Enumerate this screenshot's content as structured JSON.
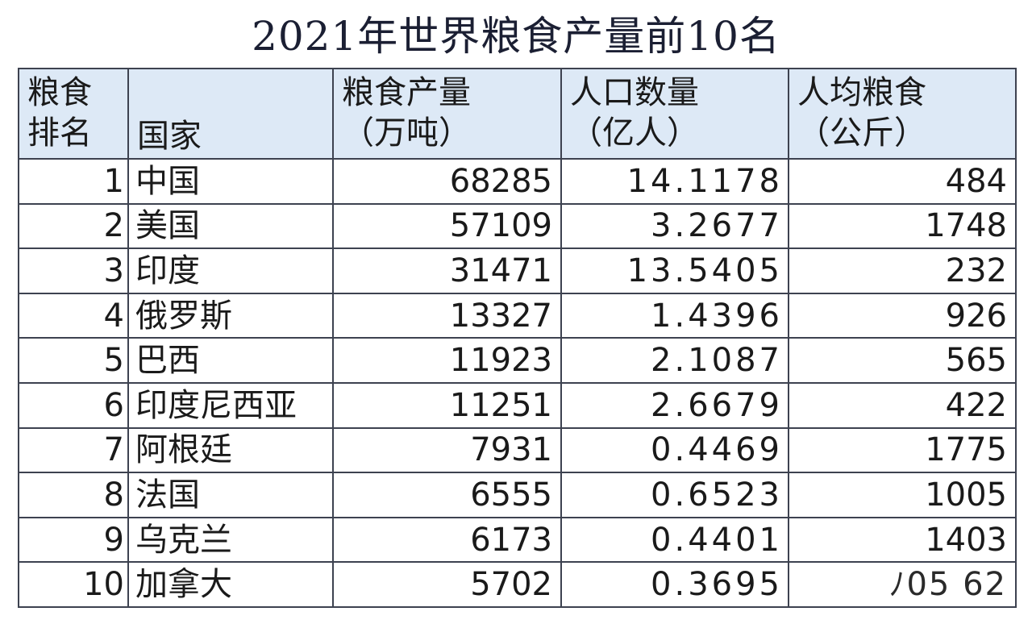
{
  "title": "2021年世界粮食产量前10名",
  "headers": {
    "rank": [
      "粮食",
      "排名"
    ],
    "country": "国家",
    "production": [
      "粮食产量",
      "（万吨）"
    ],
    "population": [
      "人口数量",
      "（亿人）"
    ],
    "per_capita": [
      "人均粮食",
      "（公斤）"
    ]
  },
  "rows": [
    {
      "rank": "1",
      "country": "中国",
      "production": "68285",
      "population": "14.1178",
      "per_capita": "484"
    },
    {
      "rank": "2",
      "country": "美国",
      "production": "57109",
      "population": "3.2677",
      "per_capita": "1748"
    },
    {
      "rank": "3",
      "country": "印度",
      "production": "31471",
      "population": "13.5405",
      "per_capita": "232"
    },
    {
      "rank": "4",
      "country": "俄罗斯",
      "production": "13327",
      "population": "1.4396",
      "per_capita": "926"
    },
    {
      "rank": "5",
      "country": "巴西",
      "production": "11923",
      "population": "2.1087",
      "per_capita": "565"
    },
    {
      "rank": "6",
      "country": "印度尼西亚",
      "production": "11251",
      "population": "2.6679",
      "per_capita": "422"
    },
    {
      "rank": "7",
      "country": "阿根廷",
      "production": "7931",
      "population": "0.4469",
      "per_capita": "1775"
    },
    {
      "rank": "8",
      "country": "法国",
      "production": "6555",
      "population": "0.6523",
      "per_capita": "1005"
    },
    {
      "rank": "9",
      "country": "乌克兰",
      "production": "6173",
      "population": "0.4401",
      "per_capita": "1403"
    },
    {
      "rank": "10",
      "country": "加拿大",
      "production": "5702",
      "population": "0.3695",
      "per_capita": "ﾉ05 62"
    }
  ],
  "colors": {
    "header_bg": "#dde9f6",
    "border": "#3d4250",
    "title": "#1b1f33"
  }
}
